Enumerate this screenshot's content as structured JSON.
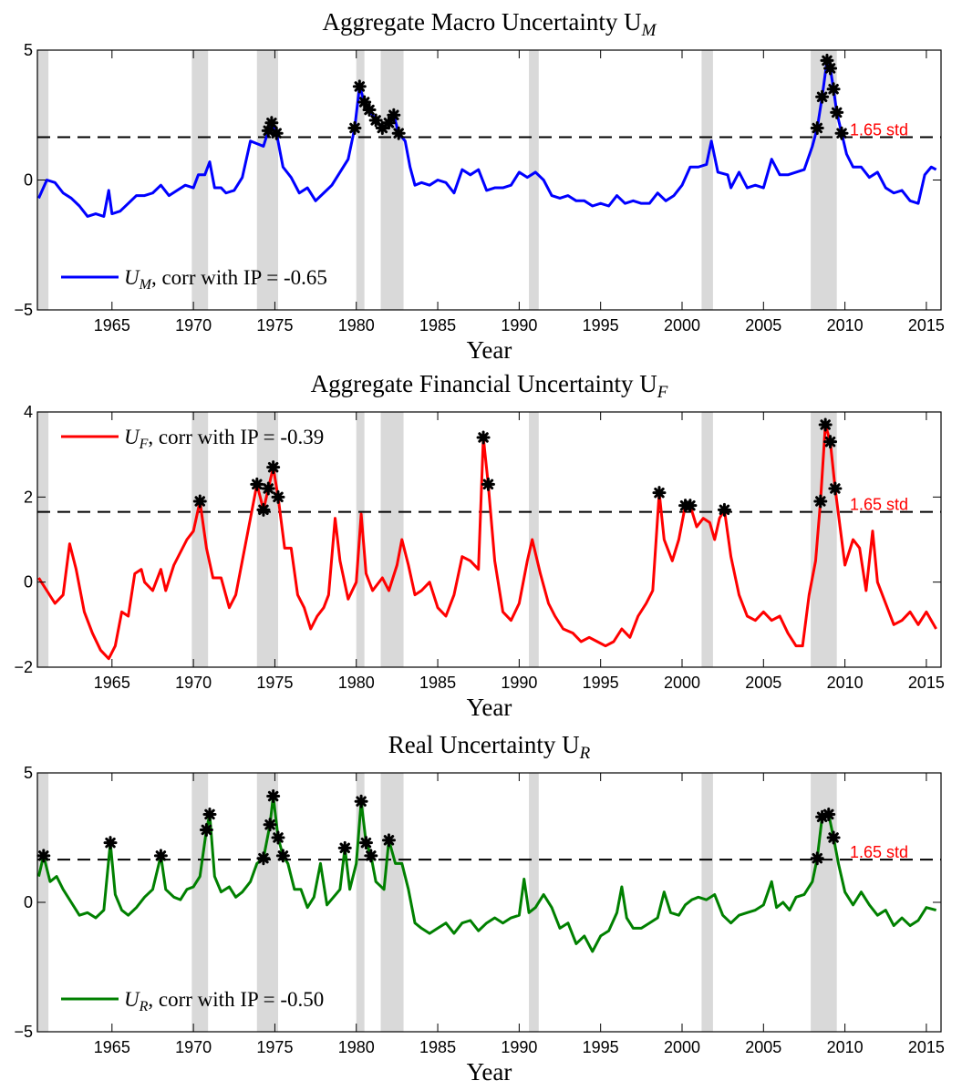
{
  "chart_data": [
    {
      "type": "line",
      "title": "Aggregate Macro Uncertainty U",
      "title_subscript": "M",
      "xlabel": "Year",
      "xlim": [
        1960.42,
        2015.9
      ],
      "ylim": [
        -5,
        5
      ],
      "xticks": [
        1965,
        1970,
        1975,
        1980,
        1985,
        1990,
        1995,
        2000,
        2005,
        2010,
        2015
      ],
      "yticks": [
        {
          "value": -5,
          "label": "−5"
        },
        0,
        5
      ],
      "threshold": {
        "value": 1.65,
        "label": "1.65 std"
      },
      "legend": "lower left",
      "recessions": [
        [
          1960.3,
          1961.1
        ],
        [
          1969.9,
          1970.9
        ],
        [
          1973.9,
          1975.2
        ],
        [
          1980.0,
          1980.5
        ],
        [
          1981.5,
          1982.9
        ],
        [
          1990.6,
          1991.2
        ],
        [
          2001.2,
          2001.9
        ],
        [
          2007.9,
          2009.5
        ]
      ],
      "x": [
        1960.5,
        1961,
        1961.5,
        1962,
        1962.5,
        1963,
        1963.5,
        1964,
        1964.5,
        1964.8,
        1965,
        1965.5,
        1966,
        1966.5,
        1967,
        1967.5,
        1968,
        1968.5,
        1969,
        1969.5,
        1970,
        1970.3,
        1970.7,
        1971,
        1971.3,
        1971.7,
        1972,
        1972.5,
        1973,
        1973.5,
        1973.9,
        1974.3,
        1974.6,
        1974.8,
        1975.1,
        1975.5,
        1976,
        1976.5,
        1977,
        1977.5,
        1978,
        1978.5,
        1979,
        1979.5,
        1979.9,
        1980.2,
        1980.5,
        1980.8,
        1981.2,
        1981.6,
        1982,
        1982.3,
        1982.6,
        1983,
        1983.3,
        1983.6,
        1984,
        1984.5,
        1985,
        1985.5,
        1986,
        1986.5,
        1987,
        1987.5,
        1988,
        1988.5,
        1989,
        1989.5,
        1990,
        1990.5,
        1991,
        1991.5,
        1992,
        1992.5,
        1993,
        1993.5,
        1994,
        1994.5,
        1995,
        1995.5,
        1996,
        1996.5,
        1997,
        1997.5,
        1998,
        1998.5,
        1999,
        1999.5,
        2000,
        2000.5,
        2001,
        2001.5,
        2001.8,
        2002.2,
        2002.8,
        2003,
        2003.5,
        2004,
        2004.5,
        2005,
        2005.5,
        2006,
        2006.5,
        2007,
        2007.5,
        2008,
        2008.3,
        2008.6,
        2008.9,
        2009.1,
        2009.3,
        2009.5,
        2009.8,
        2010.1,
        2010.5,
        2011,
        2011.5,
        2012,
        2012.5,
        2013,
        2013.5,
        2014,
        2014.5,
        2014.9,
        2015.3,
        2015.6
      ],
      "series": [
        {
          "name": "U",
          "name_subscript": "M",
          "legend_suffix": ", corr with IP = -0.65",
          "color": "#0000ff",
          "values": [
            -0.7,
            0.0,
            -0.1,
            -0.5,
            -0.7,
            -1.0,
            -1.4,
            -1.3,
            -1.4,
            -0.4,
            -1.3,
            -1.2,
            -0.9,
            -0.6,
            -0.6,
            -0.5,
            -0.2,
            -0.6,
            -0.4,
            -0.2,
            -0.3,
            0.2,
            0.2,
            0.7,
            -0.3,
            -0.3,
            -0.5,
            -0.4,
            0.1,
            1.5,
            1.4,
            1.3,
            1.9,
            2.2,
            1.8,
            0.5,
            0.1,
            -0.5,
            -0.3,
            -0.8,
            -0.5,
            -0.2,
            0.3,
            0.8,
            2.0,
            3.6,
            3.0,
            2.7,
            2.3,
            2.0,
            2.2,
            2.5,
            1.8,
            1.5,
            0.5,
            -0.2,
            -0.1,
            -0.2,
            0.0,
            -0.1,
            -0.5,
            0.4,
            0.2,
            0.4,
            -0.4,
            -0.3,
            -0.3,
            -0.2,
            0.3,
            0.1,
            0.3,
            0.0,
            -0.6,
            -0.7,
            -0.6,
            -0.8,
            -0.8,
            -1.0,
            -0.9,
            -1.0,
            -0.6,
            -0.9,
            -0.8,
            -0.9,
            -0.9,
            -0.5,
            -0.8,
            -0.6,
            -0.2,
            0.5,
            0.5,
            0.6,
            1.5,
            0.3,
            0.2,
            -0.3,
            0.3,
            -0.3,
            -0.2,
            -0.3,
            0.8,
            0.2,
            0.2,
            0.3,
            0.4,
            1.3,
            2.0,
            3.2,
            4.6,
            4.3,
            3.5,
            2.6,
            1.8,
            1.0,
            0.5,
            0.5,
            0.1,
            0.3,
            -0.3,
            -0.5,
            -0.4,
            -0.8,
            -0.9,
            0.2,
            0.5,
            0.4
          ]
        }
      ]
    },
    {
      "type": "line",
      "title": "Aggregate Financial Uncertainty U",
      "title_subscript": "F",
      "xlabel": "Year",
      "xlim": [
        1960.42,
        2015.9
      ],
      "ylim": [
        -2,
        4
      ],
      "xticks": [
        1965,
        1970,
        1975,
        1980,
        1985,
        1990,
        1995,
        2000,
        2005,
        2010,
        2015
      ],
      "yticks": [
        {
          "value": -2,
          "label": "−2"
        },
        0,
        2,
        4
      ],
      "threshold": {
        "value": 1.65,
        "label": "1.65 std"
      },
      "legend": "upper left",
      "recessions": [
        [
          1960.3,
          1961.1
        ],
        [
          1969.9,
          1970.9
        ],
        [
          1973.9,
          1975.2
        ],
        [
          1980.0,
          1980.5
        ],
        [
          1981.5,
          1982.9
        ],
        [
          1990.6,
          1991.2
        ],
        [
          2001.2,
          2001.9
        ],
        [
          2007.9,
          2009.5
        ]
      ],
      "x": [
        1960.5,
        1961,
        1961.5,
        1962,
        1962.4,
        1962.8,
        1963.3,
        1963.8,
        1964.3,
        1964.8,
        1965.2,
        1965.6,
        1966,
        1966.4,
        1966.8,
        1967,
        1967.5,
        1968,
        1968.3,
        1968.8,
        1969.2,
        1969.6,
        1970,
        1970.4,
        1970.8,
        1971.2,
        1971.7,
        1972.2,
        1972.6,
        1973,
        1973.5,
        1973.9,
        1974.3,
        1974.6,
        1974.9,
        1975.2,
        1975.6,
        1976,
        1976.4,
        1976.8,
        1977.2,
        1977.6,
        1978,
        1978.3,
        1978.7,
        1979,
        1979.5,
        1980,
        1980.3,
        1980.6,
        1981,
        1981.6,
        1982,
        1982.5,
        1982.8,
        1983.2,
        1983.6,
        1984,
        1984.5,
        1985,
        1985.5,
        1986,
        1986.5,
        1987,
        1987.5,
        1987.8,
        1988.1,
        1988.5,
        1989,
        1989.5,
        1990,
        1990.5,
        1990.8,
        1991.3,
        1991.8,
        1992.2,
        1992.7,
        1993.3,
        1993.8,
        1994.3,
        1994.8,
        1995.3,
        1995.8,
        1996.3,
        1996.8,
        1997.3,
        1997.8,
        1998.2,
        1998.6,
        1998.9,
        1999.4,
        1999.8,
        2000.2,
        2000.5,
        2000.9,
        2001.3,
        2001.7,
        2002,
        2002.3,
        2002.6,
        2003,
        2003.5,
        2004,
        2004.5,
        2005,
        2005.5,
        2006,
        2006.5,
        2007,
        2007.4,
        2007.8,
        2008.2,
        2008.5,
        2008.8,
        2009.1,
        2009.4,
        2009.7,
        2010,
        2010.5,
        2010.9,
        2011.3,
        2011.7,
        2012,
        2012.5,
        2013,
        2013.5,
        2014,
        2014.5,
        2015,
        2015.6
      ],
      "series": [
        {
          "name": "U",
          "name_subscript": "F",
          "legend_suffix": ", corr with IP = -0.39",
          "color": "#ff0000",
          "values": [
            0.1,
            -0.2,
            -0.5,
            -0.3,
            0.9,
            0.3,
            -0.7,
            -1.2,
            -1.6,
            -1.8,
            -1.5,
            -0.7,
            -0.8,
            0.2,
            0.3,
            0.0,
            -0.2,
            0.3,
            -0.2,
            0.4,
            0.7,
            1.0,
            1.2,
            1.9,
            0.8,
            0.1,
            0.1,
            -0.6,
            -0.3,
            0.5,
            1.5,
            2.3,
            1.7,
            2.2,
            2.7,
            2.0,
            0.8,
            0.8,
            -0.3,
            -0.6,
            -1.1,
            -0.8,
            -0.6,
            -0.3,
            1.5,
            0.5,
            -0.4,
            0.0,
            1.6,
            0.2,
            -0.2,
            0.1,
            -0.2,
            0.4,
            1.0,
            0.4,
            -0.3,
            -0.2,
            0.0,
            -0.6,
            -0.8,
            -0.3,
            0.6,
            0.5,
            0.3,
            3.4,
            2.3,
            0.5,
            -0.7,
            -0.9,
            -0.5,
            0.5,
            1.0,
            0.2,
            -0.5,
            -0.8,
            -1.1,
            -1.2,
            -1.4,
            -1.3,
            -1.4,
            -1.5,
            -1.4,
            -1.1,
            -1.3,
            -0.8,
            -0.5,
            -0.2,
            2.1,
            1.0,
            0.5,
            1.0,
            1.8,
            1.8,
            1.3,
            1.5,
            1.4,
            1.0,
            1.5,
            1.7,
            0.6,
            -0.3,
            -0.8,
            -0.9,
            -0.7,
            -0.9,
            -0.8,
            -1.2,
            -1.5,
            -1.5,
            -0.3,
            0.5,
            1.9,
            3.7,
            3.3,
            2.2,
            1.3,
            0.4,
            1.0,
            0.8,
            -0.2,
            1.2,
            0.0,
            -0.5,
            -1.0,
            -0.9,
            -0.7,
            -1.0,
            -0.7,
            -1.1
          ]
        }
      ]
    },
    {
      "type": "line",
      "title": "Real Uncertainty U",
      "title_subscript": "R",
      "xlabel": "Year",
      "xlim": [
        1960.42,
        2015.9
      ],
      "ylim": [
        -5,
        5
      ],
      "xticks": [
        1965,
        1970,
        1975,
        1980,
        1985,
        1990,
        1995,
        2000,
        2005,
        2010,
        2015
      ],
      "yticks": [
        {
          "value": -5,
          "label": "−5"
        },
        0,
        5
      ],
      "threshold": {
        "value": 1.65,
        "label": "1.65 std"
      },
      "legend": "lower left",
      "recessions": [
        [
          1960.3,
          1961.1
        ],
        [
          1969.9,
          1970.9
        ],
        [
          1973.9,
          1975.2
        ],
        [
          1980.0,
          1980.5
        ],
        [
          1981.5,
          1982.9
        ],
        [
          1990.6,
          1991.2
        ],
        [
          2001.2,
          2001.9
        ],
        [
          2007.9,
          2009.5
        ]
      ],
      "x": [
        1960.5,
        1960.8,
        1961.2,
        1961.6,
        1962,
        1962.5,
        1963,
        1963.5,
        1964,
        1964.5,
        1964.9,
        1965.2,
        1965.6,
        1966,
        1966.5,
        1967,
        1967.5,
        1968,
        1968.3,
        1968.8,
        1969.2,
        1969.6,
        1970,
        1970.4,
        1970.8,
        1971,
        1971.3,
        1971.7,
        1972.2,
        1972.6,
        1973,
        1973.5,
        1973.9,
        1974.3,
        1974.7,
        1974.9,
        1975.2,
        1975.5,
        1975.8,
        1976.2,
        1976.6,
        1977,
        1977.4,
        1977.8,
        1978.2,
        1978.6,
        1979,
        1979.3,
        1979.6,
        1980,
        1980.3,
        1980.6,
        1980.9,
        1981.2,
        1981.7,
        1982,
        1982.4,
        1982.8,
        1983.2,
        1983.6,
        1984,
        1984.5,
        1985,
        1985.5,
        1986,
        1986.5,
        1987,
        1987.5,
        1988,
        1988.5,
        1989,
        1989.5,
        1990,
        1990.3,
        1990.6,
        1991,
        1991.5,
        1992,
        1992.5,
        1993,
        1993.5,
        1994,
        1994.5,
        1995,
        1995.5,
        1996,
        1996.3,
        1996.6,
        1997,
        1997.5,
        1998,
        1998.5,
        1998.9,
        1999.3,
        1999.8,
        2000.2,
        2000.6,
        2001,
        2001.5,
        2002,
        2002.5,
        2003,
        2003.5,
        2004,
        2004.5,
        2005,
        2005.5,
        2005.8,
        2006.2,
        2006.6,
        2007,
        2007.5,
        2008,
        2008.3,
        2008.6,
        2009,
        2009.3,
        2009.6,
        2010,
        2010.5,
        2011,
        2011.5,
        2012,
        2012.5,
        2013,
        2013.5,
        2014,
        2014.5,
        2015,
        2015.6
      ],
      "series": [
        {
          "name": "U",
          "name_subscript": "R",
          "legend_suffix": ", corr with IP = -0.50",
          "color": "#008000",
          "values": [
            1.0,
            1.8,
            0.8,
            1.0,
            0.5,
            0.0,
            -0.5,
            -0.4,
            -0.6,
            -0.3,
            2.3,
            0.3,
            -0.3,
            -0.5,
            -0.2,
            0.2,
            0.5,
            1.8,
            0.5,
            0.2,
            0.1,
            0.5,
            0.6,
            1.0,
            2.8,
            3.4,
            1.0,
            0.4,
            0.6,
            0.2,
            0.4,
            0.8,
            1.5,
            1.7,
            3.0,
            4.1,
            2.5,
            1.8,
            1.5,
            0.5,
            0.5,
            -0.2,
            0.2,
            1.5,
            -0.1,
            0.2,
            0.5,
            2.1,
            0.5,
            1.5,
            3.9,
            2.3,
            1.8,
            0.8,
            0.5,
            2.4,
            1.5,
            1.5,
            0.5,
            -0.8,
            -1.0,
            -1.2,
            -1.0,
            -0.8,
            -1.2,
            -0.8,
            -0.7,
            -1.1,
            -0.8,
            -0.6,
            -0.8,
            -0.6,
            -0.5,
            0.9,
            -0.4,
            -0.2,
            0.3,
            -0.2,
            -1.0,
            -0.8,
            -1.6,
            -1.3,
            -1.9,
            -1.3,
            -1.1,
            -0.4,
            0.6,
            -0.6,
            -1.0,
            -1.0,
            -0.8,
            -0.6,
            0.4,
            -0.4,
            -0.5,
            -0.1,
            0.1,
            0.2,
            0.1,
            0.3,
            -0.5,
            -0.8,
            -0.5,
            -0.4,
            -0.3,
            -0.1,
            0.8,
            -0.2,
            0.0,
            -0.3,
            0.2,
            0.3,
            0.8,
            1.7,
            3.3,
            3.4,
            2.5,
            1.5,
            0.4,
            -0.1,
            0.4,
            -0.1,
            -0.5,
            -0.3,
            -0.9,
            -0.6,
            -0.9,
            -0.7,
            -0.2,
            -0.3
          ]
        }
      ]
    }
  ]
}
